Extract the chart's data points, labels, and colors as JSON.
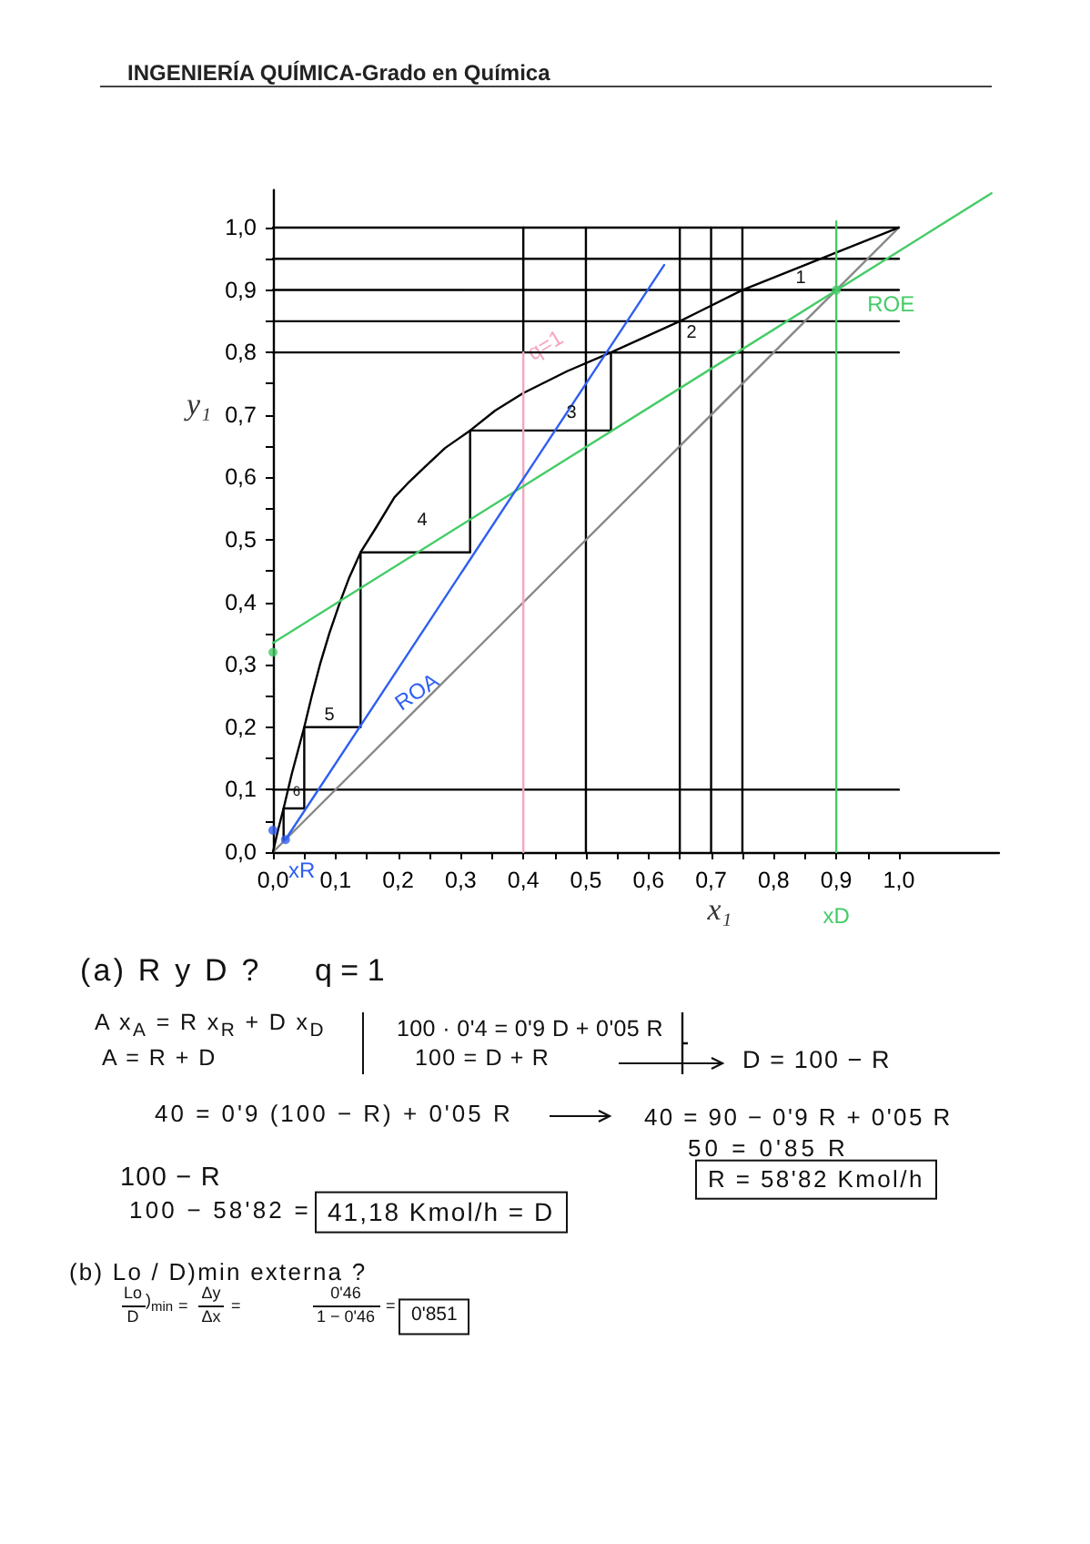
{
  "chart_data": {
    "type": "line",
    "title": "INGENIERÍA QUÍMICA-Grado en Química",
    "xlabel": "x₁",
    "ylabel": "y₁",
    "xlim": [
      0,
      1.16
    ],
    "ylim": [
      0,
      1.06
    ],
    "xticks": [
      {
        "value": 0,
        "label": "0,0"
      },
      {
        "value": 0.05,
        "label": null
      },
      {
        "value": 0.1,
        "label": "0,1"
      },
      {
        "value": 0.15,
        "label": null
      },
      {
        "value": 0.2,
        "label": "0,2"
      },
      {
        "value": 0.25,
        "label": null
      },
      {
        "value": 0.3,
        "label": "0,3"
      },
      {
        "value": 0.35,
        "label": null
      },
      {
        "value": 0.4,
        "label": "0,4"
      },
      {
        "value": 0.45,
        "label": null
      },
      {
        "value": 0.5,
        "label": "0,5"
      },
      {
        "value": 0.55,
        "label": null
      },
      {
        "value": 0.6,
        "label": "0,6"
      },
      {
        "value": 0.65,
        "label": null
      },
      {
        "value": 0.7,
        "label": "0,7"
      },
      {
        "value": 0.75,
        "label": null
      },
      {
        "value": 0.8,
        "label": "0,8"
      },
      {
        "value": 0.85,
        "label": null
      },
      {
        "value": 0.9,
        "label": "0,9"
      },
      {
        "value": 0.95,
        "label": null
      },
      {
        "value": 1,
        "label": "1,0"
      }
    ],
    "yticks": [
      {
        "value": 0,
        "label": "0,0"
      },
      {
        "value": 0.05,
        "label": null
      },
      {
        "value": 0.1,
        "label": "0,1"
      },
      {
        "value": 0.15,
        "label": null
      },
      {
        "value": 0.2,
        "label": "0,2"
      },
      {
        "value": 0.25,
        "label": null
      },
      {
        "value": 0.3,
        "label": "0,3"
      },
      {
        "value": 0.35,
        "label": null
      },
      {
        "value": 0.4,
        "label": "0,4"
      },
      {
        "value": 0.45,
        "label": null
      },
      {
        "value": 0.5,
        "label": "0,5"
      },
      {
        "value": 0.55,
        "label": null
      },
      {
        "value": 0.6,
        "label": "0,6"
      },
      {
        "value": 0.65,
        "label": null
      },
      {
        "value": 0.7,
        "label": "0,7"
      },
      {
        "value": 0.75,
        "label": null
      },
      {
        "value": 0.8,
        "label": "0,8"
      },
      {
        "value": 0.85,
        "label": null
      },
      {
        "value": 0.9,
        "label": "0,9"
      },
      {
        "value": 0.95,
        "label": null
      },
      {
        "value": 1,
        "label": "1,0"
      }
    ],
    "marker": "none",
    "line_style": "solid",
    "series": [
      {
        "color": "#000000",
        "x": [
          0,
          1
        ],
        "values": [
          0.1,
          0.1
        ]
      },
      {
        "color": "#000000",
        "x": [
          0,
          1
        ],
        "values": [
          0.8,
          0.8
        ]
      },
      {
        "color": "#000000",
        "x": [
          0,
          1
        ],
        "values": [
          0.85,
          0.85
        ]
      },
      {
        "color": "#000000",
        "x": [
          0,
          1
        ],
        "values": [
          0.9,
          0.9
        ]
      },
      {
        "color": "#000000",
        "x": [
          0,
          1
        ],
        "values": [
          0.95,
          0.95
        ]
      },
      {
        "color": "#000000",
        "x": [
          0,
          1
        ],
        "values": [
          1,
          1
        ]
      },
      {
        "color": "#000000",
        "x": [
          0.4,
          0.4
        ],
        "values": [
          0.8,
          1
        ]
      },
      {
        "color": "#000000",
        "x": [
          0.5,
          0.5
        ],
        "values": [
          0,
          1
        ]
      },
      {
        "color": "#000000",
        "x": [
          0.65,
          0.65
        ],
        "values": [
          0,
          1
        ]
      },
      {
        "color": "#000000",
        "x": [
          0.7,
          0.7
        ],
        "values": [
          0,
          1
        ]
      },
      {
        "color": "#000000",
        "x": [
          0.75,
          0.75
        ],
        "values": [
          0,
          1
        ]
      },
      {
        "color": "#888888",
        "x": [
          0,
          1
        ],
        "values": [
          0,
          1
        ]
      },
      {
        "color": "#000000",
        "x": [
          0,
          0.008,
          0.017,
          0.03,
          0.05,
          0.062,
          0.075,
          0.09,
          0.107,
          0.122,
          0.14,
          0.165,
          0.194,
          0.215,
          0.242,
          0.275,
          0.315,
          0.355,
          0.4,
          0.47,
          0.54,
          0.65,
          0.75,
          0.9,
          1
        ],
        "values": [
          0,
          0.035,
          0.07,
          0.125,
          0.2,
          0.25,
          0.3,
          0.35,
          0.4,
          0.44,
          0.48,
          0.52,
          0.568,
          0.59,
          0.616,
          0.647,
          0.675,
          0.707,
          0.735,
          0.77,
          0.8,
          0.85,
          0.9,
          0.96,
          1
        ]
      },
      {
        "color": "#000000",
        "x": [
          0.9,
          0.75,
          0.75,
          0.54,
          0.54,
          0.315,
          0.315,
          0.14,
          0.14,
          0.05,
          0.05,
          0.017,
          0.017
        ],
        "values": [
          0.9,
          0.9,
          0.8,
          0.8,
          0.675,
          0.675,
          0.48,
          0.48,
          0.2,
          0.2,
          0.07,
          0.07,
          0.02
        ]
      },
      {
        "name": "q=1",
        "color": "#f4a6c0",
        "x": [
          0.4,
          0.4
        ],
        "values": [
          0,
          0.8
        ]
      },
      {
        "name": "xD",
        "color": "#44cc66",
        "x": [
          0.9,
          0.9
        ],
        "values": [
          0,
          1.01
        ]
      },
      {
        "name": "ROE",
        "color": "#44cc66",
        "x": [
          0,
          1.148
        ],
        "values": [
          0.335,
          1.055
        ]
      },
      {
        "name": "ROA",
        "color": "#2f5ff0",
        "x": [
          0.02,
          0.625
        ],
        "values": [
          0.02,
          0.94
        ]
      },
      {
        "type": "scatter",
        "marker": "circle",
        "color": "#44cc66",
        "x": [
          0,
          0.9
        ],
        "values": [
          0.32,
          0.9
        ]
      },
      {
        "type": "scatter",
        "marker": "circle",
        "color": "#2f5ff0",
        "x": [
          0
        ],
        "values": [
          0.035
        ]
      },
      {
        "name": "xR",
        "type": "scatter",
        "marker": "circle",
        "color": "#2f5ff0",
        "x": [
          0.02
        ],
        "values": [
          0.02
        ]
      }
    ],
    "annotations": [
      "1",
      "2",
      "3",
      "4",
      "5",
      "6",
      "(a) R y D ?",
      "q = 1",
      "A x$_{A}$ = R x$_{R}$ + D x$_{D}$",
      "A = R + D",
      "100 · 0'4 = 0'9 D + 0'05 R",
      "100 = D + R",
      "D = 100 − R",
      "40 = 0'9 (100 − R) + 0'05 R",
      "40 = 90 − 0'9 R + 0'05 R",
      "50 = 0'85 R",
      "R = 58'82 Kmol/h",
      "100 − R",
      "100 − 58'82 =",
      "41,18 Kmol/h = D",
      "(b) Lo / D)min externa ?",
      "Lo",
      "D",
      ")$_{min}$",
      "=",
      "Δy",
      "Δx",
      "=",
      "0'46",
      "1 − 0'46",
      "=",
      "0'851"
    ]
  }
}
